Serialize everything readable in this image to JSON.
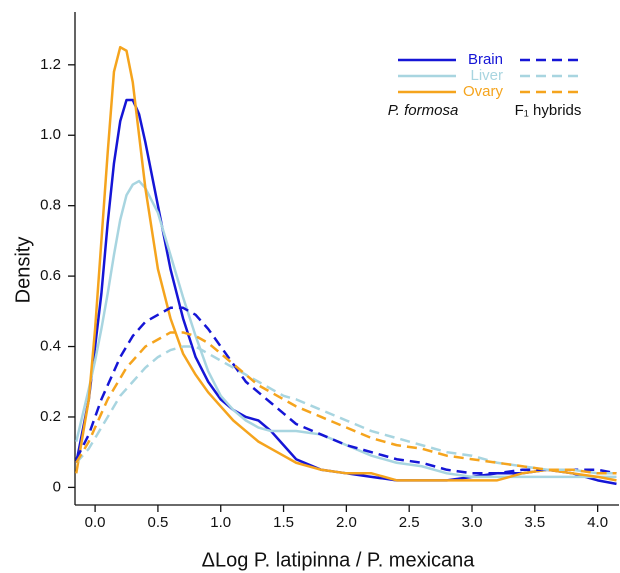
{
  "chart_data": {
    "type": "line",
    "xlabel": "ΔLog P. latipinna / P. mexicana",
    "ylabel": "Density",
    "x": [
      -0.15,
      -0.05,
      0,
      0.05,
      0.1,
      0.15,
      0.2,
      0.25,
      0.3,
      0.35,
      0.4,
      0.5,
      0.6,
      0.7,
      0.8,
      0.9,
      1.0,
      1.1,
      1.2,
      1.3,
      1.4,
      1.5,
      1.6,
      1.8,
      2.0,
      2.2,
      2.4,
      2.6,
      2.8,
      3.0,
      3.2,
      3.4,
      3.6,
      3.8,
      4.0,
      4.15
    ],
    "series": [
      {
        "name": "Brain",
        "color": "#1515d6",
        "dashed": false,
        "values": [
          0.07,
          0.25,
          0.4,
          0.55,
          0.75,
          0.92,
          1.04,
          1.1,
          1.1,
          1.06,
          0.98,
          0.8,
          0.62,
          0.48,
          0.37,
          0.3,
          0.25,
          0.22,
          0.2,
          0.19,
          0.16,
          0.12,
          0.08,
          0.05,
          0.04,
          0.03,
          0.02,
          0.02,
          0.02,
          0.03,
          0.04,
          0.04,
          0.05,
          0.04,
          0.02,
          0.01
        ]
      },
      {
        "name": "Liver",
        "color": "#a8d5e0",
        "dashed": false,
        "values": [
          0.13,
          0.28,
          0.36,
          0.45,
          0.55,
          0.66,
          0.76,
          0.83,
          0.86,
          0.87,
          0.85,
          0.78,
          0.66,
          0.54,
          0.43,
          0.33,
          0.26,
          0.22,
          0.19,
          0.17,
          0.16,
          0.16,
          0.16,
          0.15,
          0.12,
          0.09,
          0.07,
          0.06,
          0.04,
          0.03,
          0.03,
          0.03,
          0.03,
          0.03,
          0.03,
          0.03
        ]
      },
      {
        "name": "Ovary",
        "color": "#f5a41d",
        "dashed": false,
        "values": [
          0.04,
          0.25,
          0.45,
          0.7,
          0.95,
          1.18,
          1.25,
          1.24,
          1.15,
          1.0,
          0.85,
          0.62,
          0.48,
          0.38,
          0.32,
          0.27,
          0.23,
          0.19,
          0.16,
          0.13,
          0.11,
          0.09,
          0.07,
          0.05,
          0.04,
          0.04,
          0.02,
          0.02,
          0.02,
          0.02,
          0.02,
          0.04,
          0.05,
          0.04,
          0.03,
          0.02
        ]
      },
      {
        "color": "#1515d6",
        "dashed": true,
        "values": [
          0.08,
          0.15,
          0.2,
          0.25,
          0.29,
          0.33,
          0.37,
          0.4,
          0.43,
          0.45,
          0.47,
          0.49,
          0.51,
          0.51,
          0.49,
          0.45,
          0.4,
          0.35,
          0.3,
          0.27,
          0.24,
          0.21,
          0.18,
          0.15,
          0.12,
          0.1,
          0.08,
          0.07,
          0.05,
          0.04,
          0.04,
          0.05,
          0.05,
          0.05,
          0.05,
          0.04
        ]
      },
      {
        "color": "#a8d5e0",
        "dashed": true,
        "values": [
          0.07,
          0.11,
          0.14,
          0.17,
          0.2,
          0.23,
          0.26,
          0.28,
          0.3,
          0.32,
          0.34,
          0.37,
          0.39,
          0.4,
          0.4,
          0.38,
          0.36,
          0.34,
          0.32,
          0.3,
          0.28,
          0.26,
          0.25,
          0.22,
          0.19,
          0.16,
          0.14,
          0.12,
          0.1,
          0.09,
          0.07,
          0.06,
          0.05,
          0.05,
          0.04,
          0.04
        ]
      },
      {
        "color": "#f5a41d",
        "dashed": true,
        "values": [
          0.07,
          0.13,
          0.17,
          0.21,
          0.25,
          0.28,
          0.31,
          0.34,
          0.36,
          0.38,
          0.4,
          0.42,
          0.44,
          0.44,
          0.43,
          0.41,
          0.38,
          0.35,
          0.32,
          0.29,
          0.27,
          0.25,
          0.23,
          0.2,
          0.17,
          0.14,
          0.12,
          0.11,
          0.09,
          0.08,
          0.07,
          0.06,
          0.05,
          0.05,
          0.04,
          0.04
        ]
      }
    ],
    "legend_columns": [
      "P. formosa",
      "F₁ hybrids"
    ],
    "xlim": [
      -0.16,
      4.17
    ],
    "ylim": [
      -0.05,
      1.35
    ],
    "xticks": [
      {
        "value": 0,
        "label": "0.0"
      },
      0.5,
      {
        "value": 1,
        "label": "1.0"
      },
      1.5,
      {
        "value": 2,
        "label": "2.0"
      },
      2.5,
      {
        "value": 3,
        "label": "3.0"
      },
      3.5,
      {
        "value": 4,
        "label": "4.0"
      }
    ],
    "yticks": [
      0,
      0.2,
      0.4,
      0.6,
      0.8,
      {
        "value": 1,
        "label": "1.0"
      },
      1.2
    ]
  }
}
